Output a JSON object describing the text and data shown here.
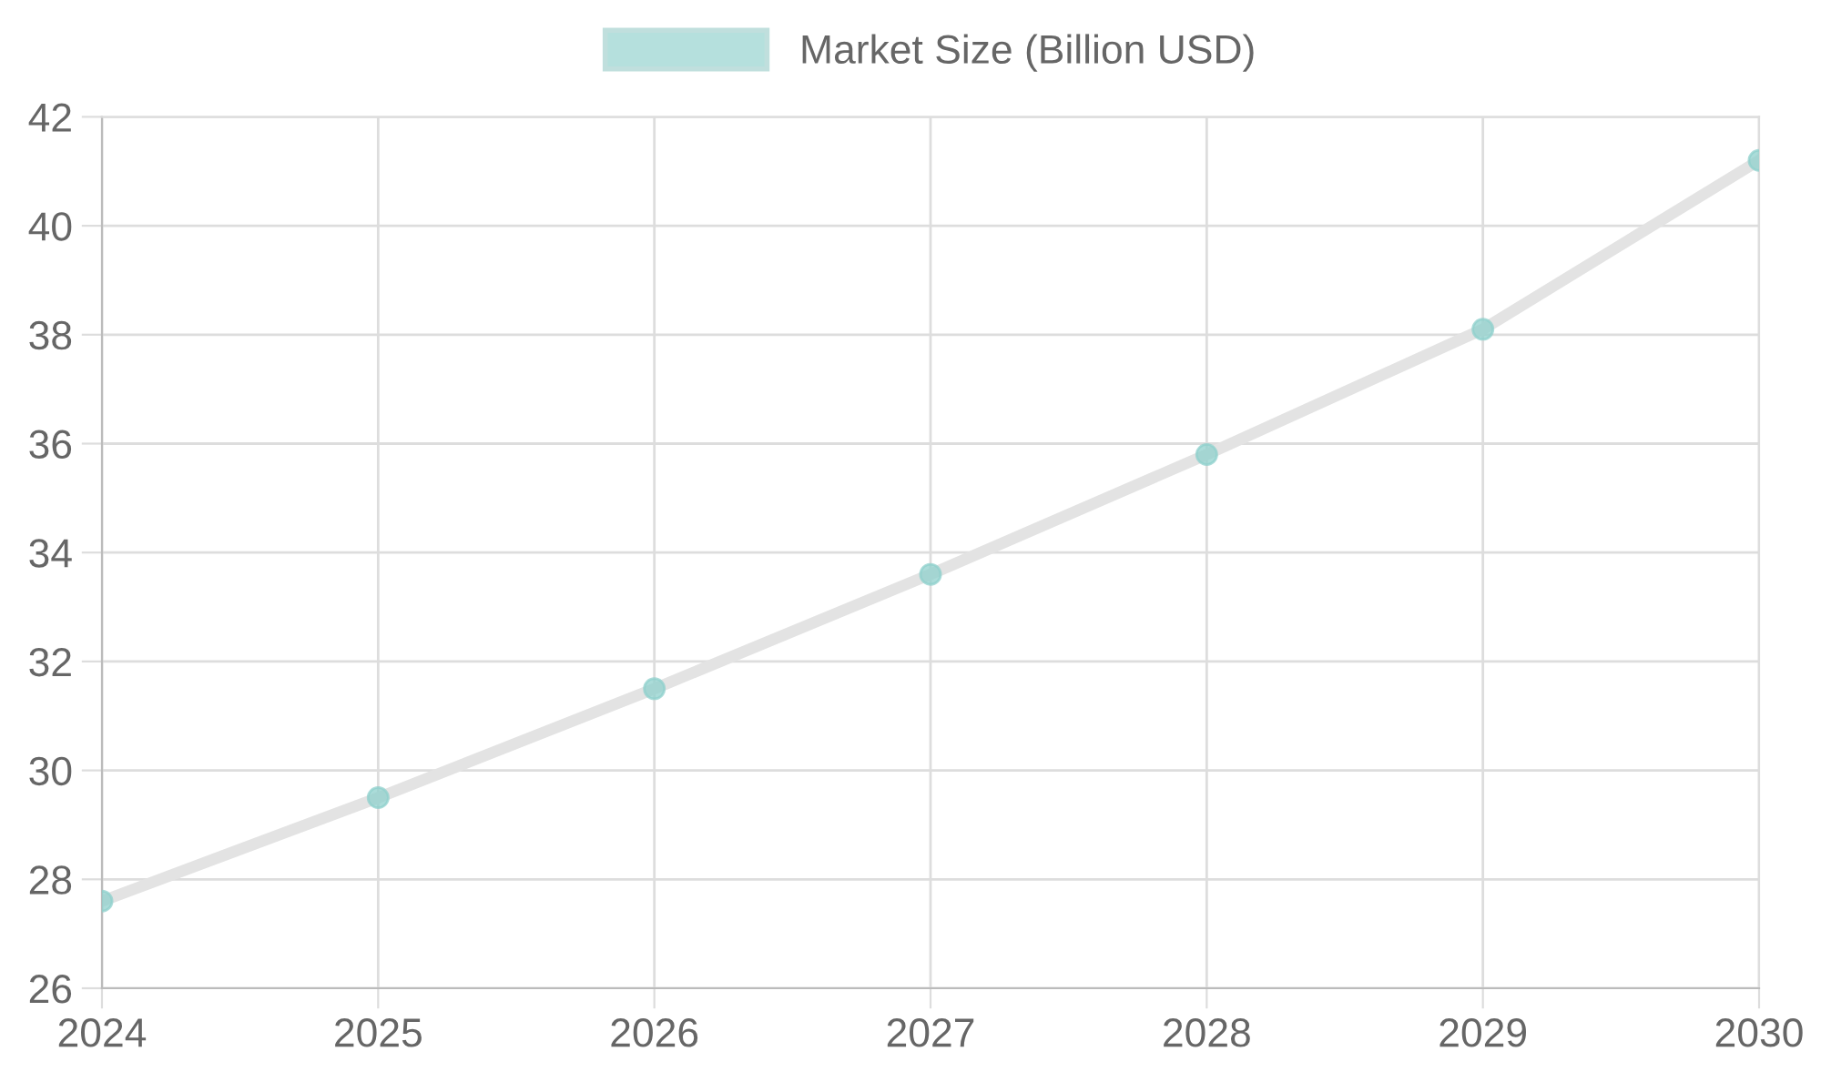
{
  "chart_data": {
    "type": "line",
    "categories": [
      "2024",
      "2025",
      "2026",
      "2027",
      "2028",
      "2029",
      "2030"
    ],
    "series": [
      {
        "name": "Market Size (Billion USD)",
        "color": "#8fd0cc",
        "values": [
          27.6,
          29.5,
          31.5,
          33.6,
          35.8,
          38.1,
          41.2
        ]
      }
    ],
    "ylim": [
      26,
      42
    ],
    "yticks": [
      26,
      28,
      30,
      32,
      34,
      36,
      38,
      40,
      42
    ],
    "grid": true,
    "legend": "top",
    "marker": "circle",
    "line_style": "solid"
  }
}
